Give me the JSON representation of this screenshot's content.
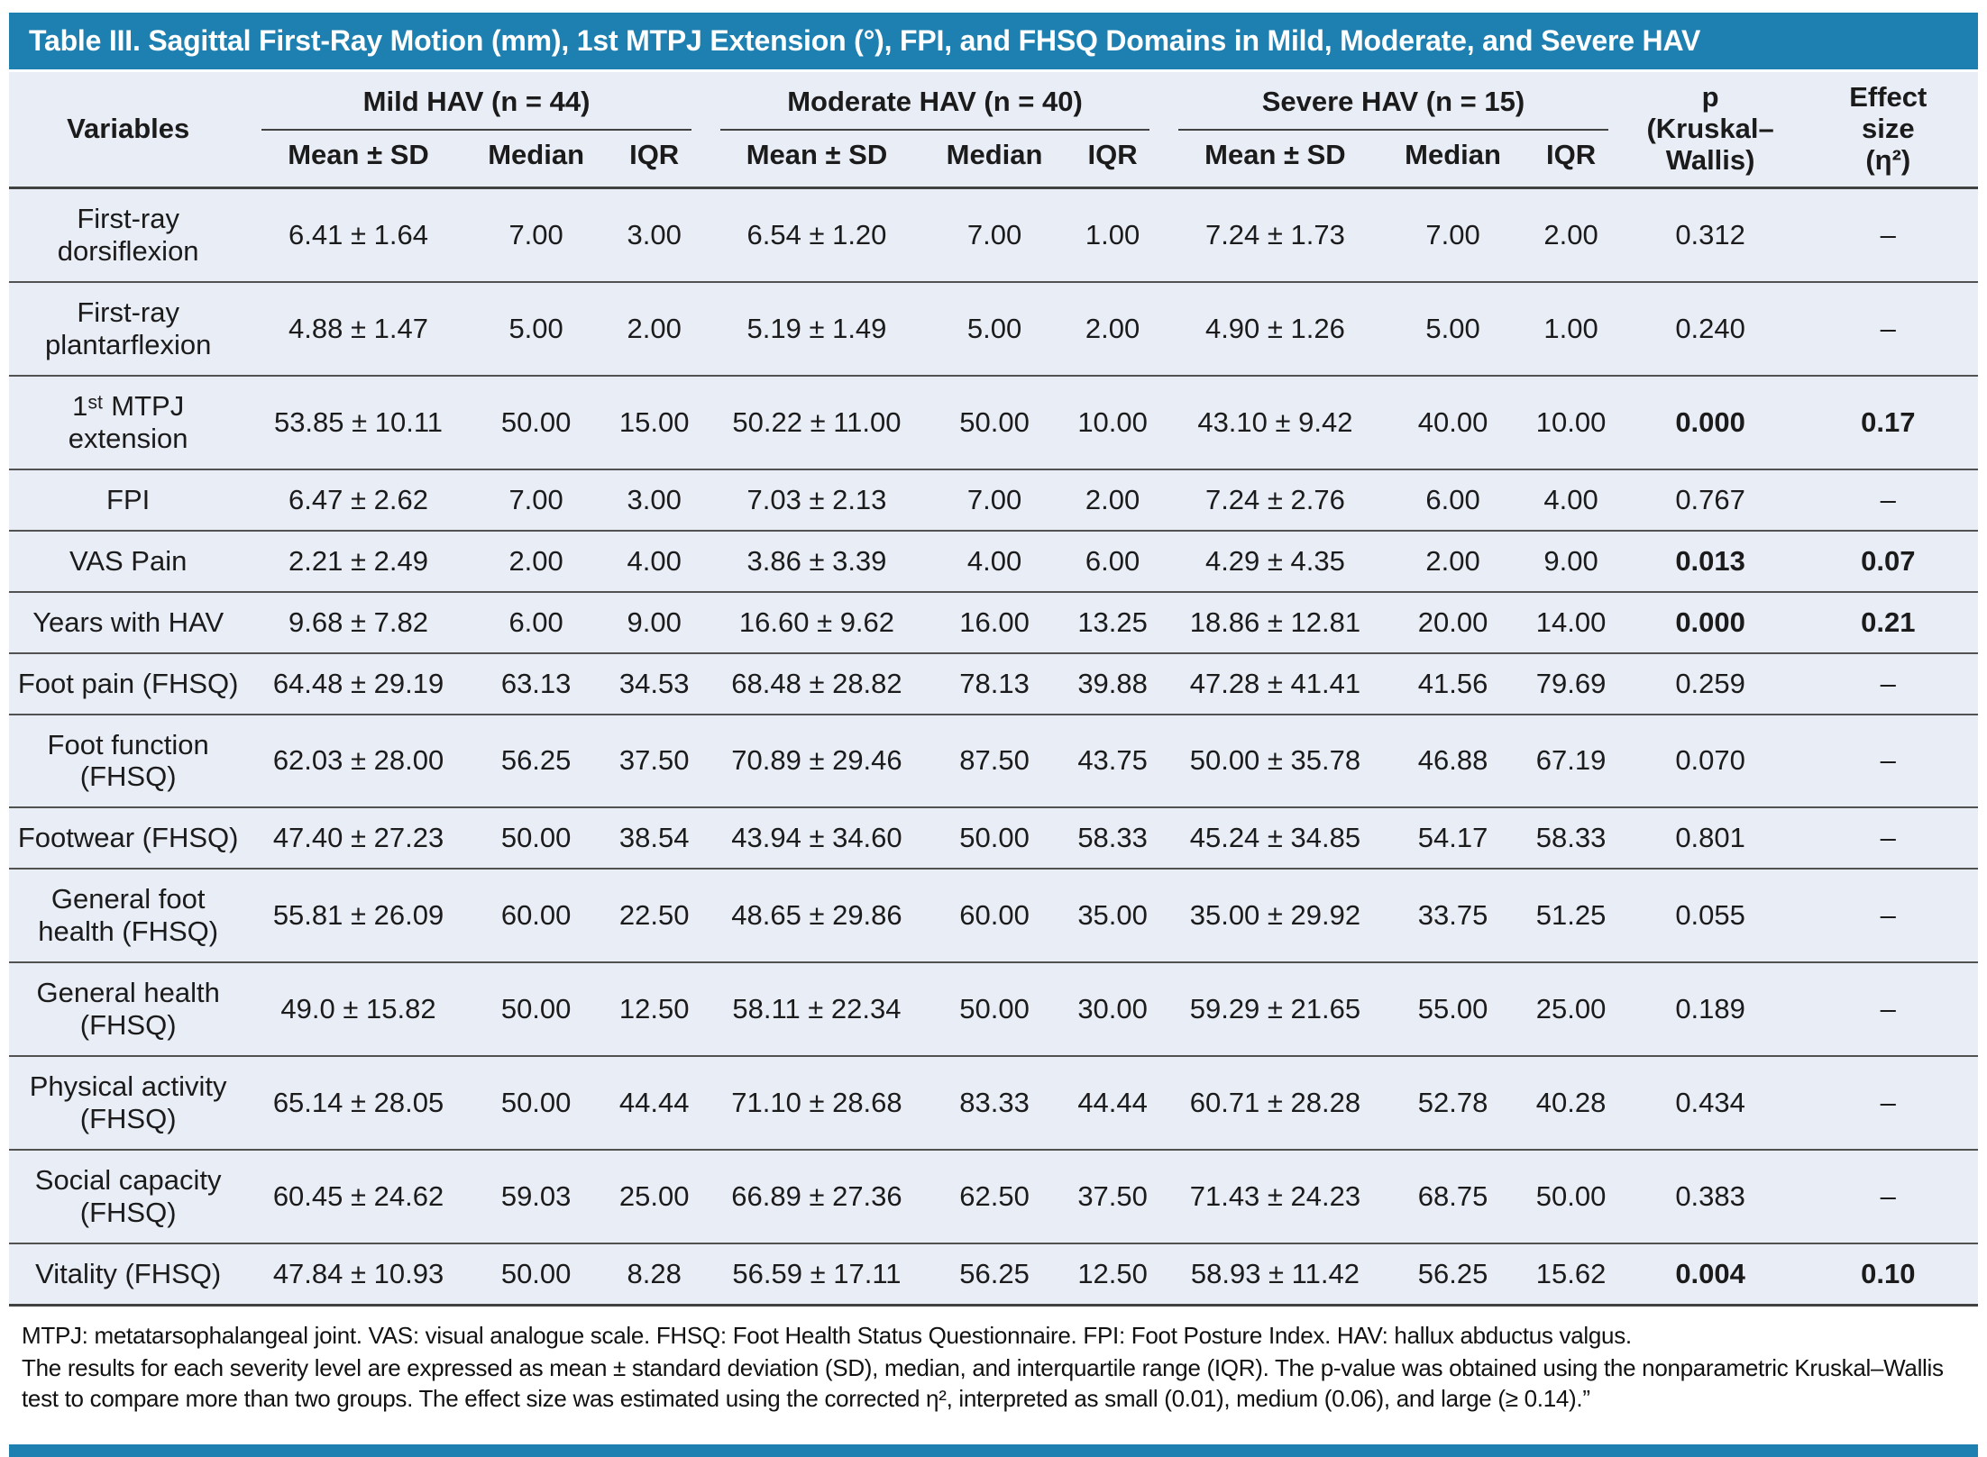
{
  "title": "Table III. Sagittal First-Ray Motion (mm), 1st MTPJ Extension (°), FPI, and FHSQ Domains in Mild, Moderate, and Severe HAV",
  "header": {
    "variables": "Variables",
    "groups": [
      "Mild HAV (n = 44)",
      "Moderate HAV (n = 40)",
      "Severe HAV (n = 15)"
    ],
    "subcolumns": [
      "Mean ± SD",
      "Median",
      "IQR"
    ],
    "p_lines": [
      "p",
      "(Kruskal–",
      "Wallis)"
    ],
    "effect_lines": [
      "Effect",
      "size",
      "(η²)"
    ]
  },
  "rows": [
    {
      "variable": "First-ray dorsiflexion",
      "values": [
        "6.41 ± 1.64",
        "7.00",
        "3.00",
        "6.54 ± 1.20",
        "7.00",
        "1.00",
        "7.24 ± 1.73",
        "7.00",
        "2.00"
      ],
      "p": "0.312",
      "effect": "–",
      "significant": false
    },
    {
      "variable": "First-ray plantarflexion",
      "values": [
        "4.88 ± 1.47",
        "5.00",
        "2.00",
        "5.19 ± 1.49",
        "5.00",
        "2.00",
        "4.90 ± 1.26",
        "5.00",
        "1.00"
      ],
      "p": "0.240",
      "effect": "–",
      "significant": false
    },
    {
      "variable": "1ˢᵗ MTPJ extension",
      "values": [
        "53.85 ± 10.11",
        "50.00",
        "15.00",
        "50.22 ± 11.00",
        "50.00",
        "10.00",
        "43.10 ± 9.42",
        "40.00",
        "10.00"
      ],
      "p": "0.000",
      "effect": "0.17",
      "significant": true
    },
    {
      "variable": "FPI",
      "values": [
        "6.47 ± 2.62",
        "7.00",
        "3.00",
        "7.03 ± 2.13",
        "7.00",
        "2.00",
        "7.24 ± 2.76",
        "6.00",
        "4.00"
      ],
      "p": "0.767",
      "effect": "–",
      "significant": false
    },
    {
      "variable": "VAS Pain",
      "values": [
        "2.21 ± 2.49",
        "2.00",
        "4.00",
        "3.86 ± 3.39",
        "4.00",
        "6.00",
        "4.29 ± 4.35",
        "2.00",
        "9.00"
      ],
      "p": "0.013",
      "effect": "0.07",
      "significant": true
    },
    {
      "variable": "Years with HAV",
      "values": [
        "9.68 ± 7.82",
        "6.00",
        "9.00",
        "16.60 ± 9.62",
        "16.00",
        "13.25",
        "18.86 ± 12.81",
        "20.00",
        "14.00"
      ],
      "p": "0.000",
      "effect": "0.21",
      "significant": true
    },
    {
      "variable": "Foot pain (FHSQ)",
      "values": [
        "64.48 ± 29.19",
        "63.13",
        "34.53",
        "68.48 ± 28.82",
        "78.13",
        "39.88",
        "47.28 ± 41.41",
        "41.56",
        "79.69"
      ],
      "p": "0.259",
      "effect": "–",
      "significant": false
    },
    {
      "variable": "Foot function (FHSQ)",
      "values": [
        "62.03 ± 28.00",
        "56.25",
        "37.50",
        "70.89 ± 29.46",
        "87.50",
        "43.75",
        "50.00 ± 35.78",
        "46.88",
        "67.19"
      ],
      "p": "0.070",
      "effect": "–",
      "significant": false
    },
    {
      "variable": "Footwear (FHSQ)",
      "values": [
        "47.40 ± 27.23",
        "50.00",
        "38.54",
        "43.94 ± 34.60",
        "50.00",
        "58.33",
        "45.24 ± 34.85",
        "54.17",
        "58.33"
      ],
      "p": "0.801",
      "effect": "–",
      "significant": false
    },
    {
      "variable": "General foot health (FHSQ)",
      "values": [
        "55.81 ± 26.09",
        "60.00",
        "22.50",
        "48.65 ± 29.86",
        "60.00",
        "35.00",
        "35.00 ± 29.92",
        "33.75",
        "51.25"
      ],
      "p": "0.055",
      "effect": "–",
      "significant": false
    },
    {
      "variable": "General health (FHSQ)",
      "values": [
        "49.0 ± 15.82",
        "50.00",
        "12.50",
        "58.11 ± 22.34",
        "50.00",
        "30.00",
        "59.29 ± 21.65",
        "55.00",
        "25.00"
      ],
      "p": "0.189",
      "effect": "–",
      "significant": false
    },
    {
      "variable": "Physical activity (FHSQ)",
      "values": [
        "65.14 ± 28.05",
        "50.00",
        "44.44",
        "71.10 ± 28.68",
        "83.33",
        "44.44",
        "60.71 ± 28.28",
        "52.78",
        "40.28"
      ],
      "p": "0.434",
      "effect": "–",
      "significant": false
    },
    {
      "variable": "Social capacity (FHSQ)",
      "values": [
        "60.45 ± 24.62",
        "59.03",
        "25.00",
        "66.89 ± 27.36",
        "62.50",
        "37.50",
        "71.43 ± 24.23",
        "68.75",
        "50.00"
      ],
      "p": "0.383",
      "effect": "–",
      "significant": false
    },
    {
      "variable": "Vitality (FHSQ)",
      "values": [
        "47.84 ± 10.93",
        "50.00",
        "8.28",
        "56.59 ± 17.11",
        "56.25",
        "12.50",
        "58.93 ± 11.42",
        "56.25",
        "15.62"
      ],
      "p": "0.004",
      "effect": "0.10",
      "significant": true
    }
  ],
  "footnotes": [
    "MTPJ: metatarsophalangeal joint. VAS: visual analogue scale. FHSQ: Foot Health Status Questionnaire. FPI: Foot Posture Index. HAV: hallux abductus valgus.",
    "The results for each severity level are expressed as mean ± standard deviation (SD), median, and interquartile range (IQR). The p-value was obtained using the nonparametric Kruskal–Wallis test to compare more than two groups. The effect size was estimated using the corrected η², interpreted as small (0.01), medium (0.06), and large (≥ 0.14).”"
  ]
}
